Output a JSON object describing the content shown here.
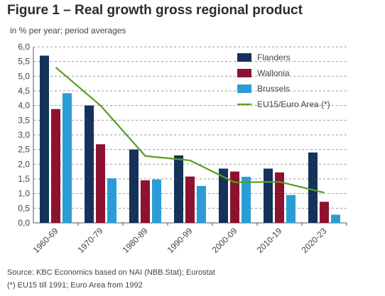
{
  "figure": {
    "title": "Figure 1 – Real growth gross regional product",
    "subtitle": "in % per year; period averages",
    "source": "Source: KBC Economics based on NAI (NBB.Stat); Eurostat",
    "note": "(*) EU15 till 1991; Euro Area from 1992"
  },
  "chart_data": {
    "type": "bar",
    "categories": [
      "1960-69",
      "1970-79",
      "1980-89",
      "1990-99",
      "2000-09",
      "2010-19",
      "2020-23"
    ],
    "series": [
      {
        "name": "Flanders",
        "type": "bar",
        "color": "#14325a",
        "values": [
          5.7,
          4.0,
          2.5,
          2.3,
          1.85,
          1.85,
          2.4
        ]
      },
      {
        "name": "Wallonia",
        "type": "bar",
        "color": "#8c1230",
        "values": [
          3.88,
          2.68,
          1.45,
          1.58,
          1.75,
          1.72,
          0.72
        ]
      },
      {
        "name": "Brussels",
        "type": "bar",
        "color": "#2b9dd6",
        "values": [
          4.42,
          1.52,
          1.48,
          1.26,
          1.57,
          0.95,
          0.28
        ]
      },
      {
        "name": "EU15/Euro Area (*)",
        "type": "line",
        "color": "#5a9e1e",
        "values": [
          5.3,
          4.0,
          2.28,
          2.13,
          1.38,
          1.4,
          1.03
        ]
      }
    ],
    "yticks": [
      "0,0",
      "0,5",
      "1,0",
      "1,5",
      "2,0",
      "2,5",
      "3,0",
      "3,5",
      "4,0",
      "4,5",
      "5,0",
      "5,5",
      "6,0"
    ],
    "ylim": [
      0,
      6
    ],
    "grid": true,
    "legend_position": "top-right"
  }
}
